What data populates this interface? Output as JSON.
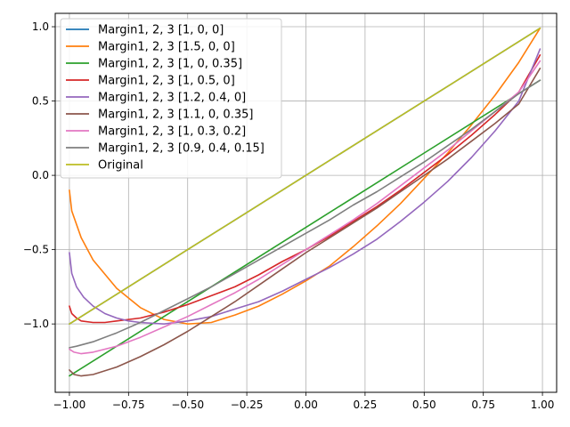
{
  "chart_data": {
    "type": "line",
    "title": "",
    "xlabel": "",
    "ylabel": "",
    "xlim": [
      -1.06,
      1.06
    ],
    "ylim": [
      -1.46,
      1.09
    ],
    "xticks": [
      -1.0,
      -0.75,
      -0.5,
      -0.25,
      0.0,
      0.25,
      0.5,
      0.75,
      1.0
    ],
    "xtick_labels": [
      "−1.00",
      "−0.75",
      "−0.50",
      "−0.25",
      "0.00",
      "0.25",
      "0.50",
      "0.75",
      "1.00"
    ],
    "yticks": [
      -1.0,
      -0.5,
      0.0,
      0.5,
      1.0
    ],
    "ytick_labels": [
      "−1.0",
      "−0.5",
      "0.0",
      "0.5",
      "1.0"
    ],
    "grid": true,
    "legend_position": "top-left",
    "series": [
      {
        "name": "Margin1, 2, 3 [1, 0, 0]",
        "color": "#1f77b4",
        "x": [
          -1.0,
          -0.75,
          -0.5,
          -0.25,
          0.0,
          0.25,
          0.5,
          0.75,
          0.99
        ],
        "y": [
          -1.0,
          -0.75,
          -0.5,
          -0.25,
          0.0,
          0.25,
          0.5,
          0.75,
          0.99
        ]
      },
      {
        "name": "Margin1, 2, 3 [1.5, 0, 0]",
        "color": "#ff7f0e",
        "x": [
          -1.0,
          -0.99,
          -0.95,
          -0.9,
          -0.8,
          -0.7,
          -0.6,
          -0.5,
          -0.4,
          -0.3,
          -0.2,
          -0.1,
          0.0,
          0.1,
          0.2,
          0.3,
          0.4,
          0.5,
          0.6,
          0.7,
          0.8,
          0.9,
          0.99
        ],
        "y": [
          -0.1,
          -0.24,
          -0.42,
          -0.57,
          -0.76,
          -0.89,
          -0.97,
          -1.0,
          -0.99,
          -0.94,
          -0.88,
          -0.8,
          -0.71,
          -0.61,
          -0.48,
          -0.34,
          -0.19,
          -0.02,
          0.15,
          0.34,
          0.54,
          0.76,
          0.99
        ]
      },
      {
        "name": "Margin1, 2, 3 [1, 0, 0.35]",
        "color": "#2ca02c",
        "x": [
          -1.0,
          -0.5,
          0.0,
          0.5,
          0.99
        ],
        "y": [
          -1.35,
          -0.85,
          -0.35,
          0.15,
          0.64
        ]
      },
      {
        "name": "Margin1, 2, 3 [1, 0.5, 0]",
        "color": "#d62728",
        "x": [
          -1.0,
          -0.99,
          -0.97,
          -0.95,
          -0.9,
          -0.85,
          -0.8,
          -0.7,
          -0.6,
          -0.5,
          -0.4,
          -0.3,
          -0.2,
          -0.1,
          0.0,
          0.1,
          0.2,
          0.3,
          0.4,
          0.5,
          0.6,
          0.7,
          0.8,
          0.9,
          0.99
        ],
        "y": [
          -0.88,
          -0.93,
          -0.96,
          -0.98,
          -0.99,
          -0.99,
          -0.98,
          -0.96,
          -0.92,
          -0.87,
          -0.81,
          -0.75,
          -0.67,
          -0.58,
          -0.5,
          -0.41,
          -0.31,
          -0.21,
          -0.1,
          0.02,
          0.14,
          0.27,
          0.41,
          0.56,
          0.81
        ]
      },
      {
        "name": "Margin1, 2, 3 [1.2, 0.4, 0]",
        "color": "#9467bd",
        "x": [
          -1.0,
          -0.99,
          -0.97,
          -0.94,
          -0.9,
          -0.85,
          -0.8,
          -0.75,
          -0.7,
          -0.6,
          -0.5,
          -0.4,
          -0.3,
          -0.2,
          -0.1,
          0.0,
          0.1,
          0.2,
          0.3,
          0.4,
          0.5,
          0.6,
          0.7,
          0.8,
          0.9,
          0.99
        ],
        "y": [
          -0.52,
          -0.66,
          -0.75,
          -0.82,
          -0.88,
          -0.93,
          -0.96,
          -0.98,
          -0.99,
          -1.0,
          -0.98,
          -0.95,
          -0.9,
          -0.85,
          -0.78,
          -0.7,
          -0.62,
          -0.53,
          -0.43,
          -0.31,
          -0.18,
          -0.04,
          0.12,
          0.3,
          0.5,
          0.85
        ]
      },
      {
        "name": "Margin1, 2, 3 [1.1, 0, 0.35]",
        "color": "#8c564b",
        "x": [
          -1.0,
          -0.98,
          -0.95,
          -0.9,
          -0.8,
          -0.7,
          -0.6,
          -0.5,
          -0.4,
          -0.3,
          -0.2,
          -0.1,
          0.0,
          0.1,
          0.2,
          0.3,
          0.4,
          0.5,
          0.6,
          0.7,
          0.8,
          0.9,
          0.99
        ],
        "y": [
          -1.31,
          -1.34,
          -1.35,
          -1.34,
          -1.29,
          -1.22,
          -1.14,
          -1.05,
          -0.95,
          -0.85,
          -0.74,
          -0.63,
          -0.52,
          -0.42,
          -0.32,
          -0.22,
          -0.11,
          0.0,
          0.11,
          0.23,
          0.35,
          0.48,
          0.72
        ]
      },
      {
        "name": "Margin1, 2, 3 [1, 0.3, 0.2]",
        "color": "#e377c2",
        "x": [
          -1.0,
          -0.98,
          -0.95,
          -0.9,
          -0.8,
          -0.7,
          -0.6,
          -0.5,
          -0.4,
          -0.3,
          -0.2,
          -0.1,
          0.0,
          0.1,
          0.2,
          0.3,
          0.4,
          0.5,
          0.6,
          0.7,
          0.8,
          0.9,
          0.99
        ],
        "y": [
          -1.17,
          -1.19,
          -1.2,
          -1.19,
          -1.15,
          -1.09,
          -1.02,
          -0.95,
          -0.87,
          -0.79,
          -0.7,
          -0.6,
          -0.5,
          -0.4,
          -0.3,
          -0.19,
          -0.07,
          0.05,
          0.17,
          0.3,
          0.43,
          0.56,
          0.77
        ]
      },
      {
        "name": "Margin1, 2, 3 [0.9, 0.4, 0.15]",
        "color": "#7f7f7f",
        "x": [
          -1.0,
          -0.97,
          -0.9,
          -0.8,
          -0.7,
          -0.6,
          -0.5,
          -0.4,
          -0.3,
          -0.2,
          -0.1,
          0.0,
          0.1,
          0.2,
          0.3,
          0.4,
          0.5,
          0.6,
          0.7,
          0.8,
          0.9,
          0.99
        ],
        "y": [
          -1.16,
          -1.15,
          -1.12,
          -1.06,
          -0.99,
          -0.91,
          -0.83,
          -0.75,
          -0.66,
          -0.57,
          -0.48,
          -0.39,
          -0.3,
          -0.2,
          -0.11,
          -0.01,
          0.09,
          0.2,
          0.31,
          0.43,
          0.55,
          0.64
        ]
      },
      {
        "name": "Original",
        "color": "#bcbd22",
        "x": [
          -1.0,
          -0.75,
          -0.5,
          -0.25,
          0.0,
          0.25,
          0.5,
          0.75,
          0.99
        ],
        "y": [
          -1.0,
          -0.75,
          -0.5,
          -0.25,
          0.0,
          0.25,
          0.5,
          0.75,
          0.99
        ]
      }
    ]
  }
}
